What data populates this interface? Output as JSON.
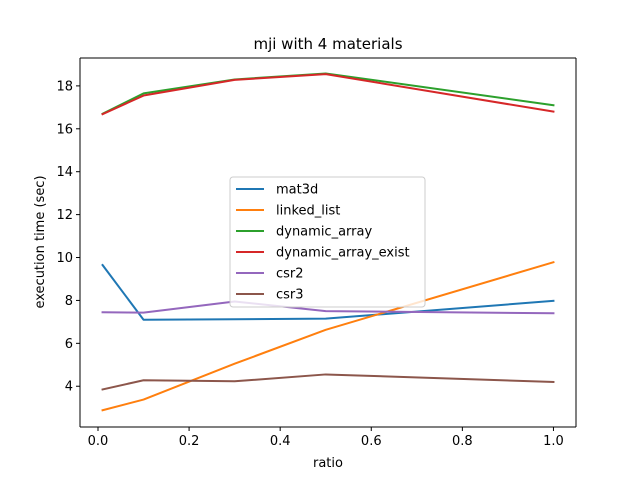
{
  "chart_data": {
    "type": "line",
    "title": "mji with 4 materials",
    "xlabel": "ratio",
    "ylabel": "execution time (sec)",
    "xlim": [
      -0.0395,
      1.0495
    ],
    "ylim": [
      2.1,
      19.3
    ],
    "xticks": [
      0.0,
      0.2,
      0.4,
      0.6,
      0.8,
      1.0
    ],
    "xtick_labels": [
      "0.0",
      "0.2",
      "0.4",
      "0.6",
      "0.8",
      "1.0"
    ],
    "yticks": [
      4,
      6,
      8,
      10,
      12,
      14,
      16,
      18
    ],
    "ytick_labels": [
      "4",
      "6",
      "8",
      "10",
      "12",
      "14",
      "16",
      "18"
    ],
    "grid": false,
    "legend_position": "center",
    "x": [
      0.01,
      0.1,
      0.3,
      0.5,
      1.0
    ],
    "series": [
      {
        "name": "mat3d",
        "color": "#1f77b4",
        "values": [
          9.65,
          7.1,
          7.12,
          7.15,
          7.98
        ]
      },
      {
        "name": "linked_list",
        "color": "#ff7f0e",
        "values": [
          2.88,
          3.38,
          5.05,
          6.63,
          9.78
        ]
      },
      {
        "name": "dynamic_array",
        "color": "#2ca02c",
        "values": [
          16.7,
          17.65,
          18.3,
          18.58,
          17.1
        ]
      },
      {
        "name": "dynamic_array_exist",
        "color": "#d62728",
        "values": [
          16.68,
          17.55,
          18.28,
          18.55,
          16.8
        ]
      },
      {
        "name": "csr2",
        "color": "#9467bd",
        "values": [
          7.45,
          7.43,
          7.95,
          7.5,
          7.4
        ]
      },
      {
        "name": "csr3",
        "color": "#8c564b",
        "values": [
          3.85,
          4.28,
          4.23,
          4.55,
          4.2
        ]
      }
    ]
  }
}
